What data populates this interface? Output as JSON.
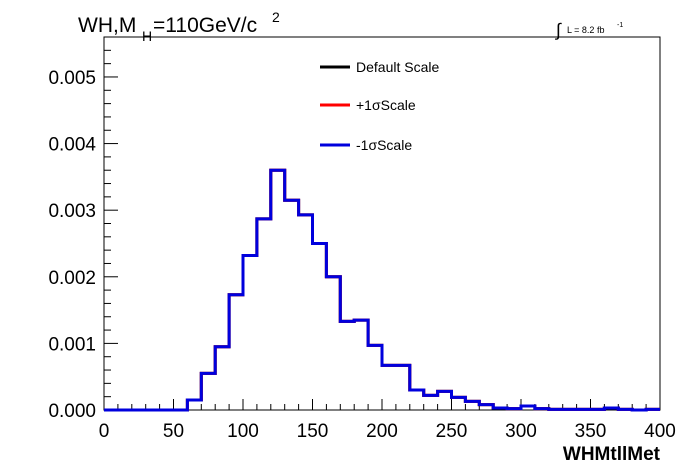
{
  "chart_data": {
    "type": "line",
    "title_main": "WH,M",
    "title_sub": "H",
    "title_rest": "=110GeV/c",
    "title_sup": "2",
    "lumi_integral": "∫",
    "lumi_text": "L = 8.2 fb",
    "lumi_sup": "-1",
    "xlabel": "WHMtllMet",
    "ylabel": "",
    "xlim": [
      0,
      400
    ],
    "ylim": [
      0,
      0.0056
    ],
    "x_ticks": [
      0,
      50,
      100,
      150,
      200,
      250,
      300,
      350,
      400
    ],
    "x_tick_labels": [
      "0",
      "50",
      "100",
      "150",
      "200",
      "250",
      "300",
      "350",
      "400"
    ],
    "y_ticks": [
      0,
      0.001,
      0.002,
      0.003,
      0.004,
      0.005
    ],
    "y_tick_labels": [
      "0.000",
      "0.001",
      "0.002",
      "0.003",
      "0.004",
      "0.005"
    ],
    "bin_edges": [
      0,
      10,
      20,
      30,
      40,
      50,
      60,
      70,
      80,
      90,
      100,
      110,
      120,
      130,
      140,
      150,
      160,
      170,
      180,
      190,
      200,
      210,
      220,
      230,
      240,
      250,
      260,
      270,
      280,
      290,
      300,
      310,
      320,
      330,
      340,
      350,
      360,
      370,
      380,
      390,
      400
    ],
    "legend_position": "top-center",
    "series": [
      {
        "name": "Default Scale",
        "color": "#000000",
        "values": [
          0,
          0,
          0,
          0,
          0,
          0,
          0.00015,
          0.00055,
          0.00095,
          0.00173,
          0.00232,
          0.00287,
          0.0036,
          0.00315,
          0.00293,
          0.0025,
          0.002,
          0.00133,
          0.00135,
          0.00097,
          0.00067,
          0.00067,
          0.0003,
          0.00022,
          0.00028,
          0.00019,
          0.00013,
          8e-05,
          3e-05,
          2e-05,
          6e-05,
          2e-05,
          1e-05,
          1e-05,
          1e-05,
          1e-05,
          3e-05,
          1e-05,
          0,
          1e-05
        ]
      },
      {
        "name": "+1σScale",
        "color": "#ff0000",
        "values": [
          0,
          0,
          0,
          0,
          0,
          0,
          0.00015,
          0.00055,
          0.00095,
          0.00173,
          0.00232,
          0.00287,
          0.0036,
          0.00315,
          0.00293,
          0.0025,
          0.002,
          0.00133,
          0.00135,
          0.00097,
          0.00067,
          0.00067,
          0.0003,
          0.00022,
          0.00028,
          0.00019,
          0.00013,
          8e-05,
          3e-05,
          2e-05,
          6e-05,
          2e-05,
          1e-05,
          1e-05,
          1e-05,
          1e-05,
          3e-05,
          1e-05,
          0,
          1e-05
        ]
      },
      {
        "name": "-1σScale",
        "color": "#0000dd",
        "values": [
          0,
          0,
          0,
          0,
          0,
          0,
          0.00015,
          0.00055,
          0.00095,
          0.00173,
          0.00232,
          0.00287,
          0.0036,
          0.00315,
          0.00293,
          0.0025,
          0.002,
          0.00133,
          0.00135,
          0.00097,
          0.00067,
          0.00067,
          0.0003,
          0.00022,
          0.00028,
          0.00019,
          0.00013,
          8e-05,
          3e-05,
          2e-05,
          6e-05,
          2e-05,
          1e-05,
          1e-05,
          1e-05,
          1e-05,
          3e-05,
          1e-05,
          0,
          1e-05
        ]
      }
    ]
  }
}
